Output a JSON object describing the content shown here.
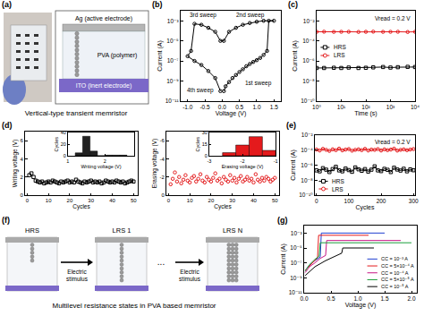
{
  "panel_a": {
    "label": "(a)",
    "electrodes": {
      "top": "Ag (active electrode)",
      "middle": "PVA (polymer)",
      "bottom": "ITO (inert electrode)"
    },
    "caption": "Vertical-type transient memristor"
  },
  "chart_data": [
    {
      "type": "line",
      "annotations": [
        "(b)",
        "1st sweep",
        "2nd sweep",
        "3rd sweep",
        "4th sweep"
      ],
      "xlabel": "Voltage (V)",
      "ylabel": "Current (A)",
      "x": [
        0.05,
        0.1,
        0.2,
        0.3,
        0.4,
        0.5,
        0.6,
        0.7,
        0.8,
        0.9,
        1.0,
        1.1,
        1.2,
        1.3,
        1.35,
        1.5,
        1.2,
        1.0,
        0.8,
        0.6,
        0.4,
        0.2,
        0.05,
        -0.05,
        -0.2,
        -0.4,
        -0.6,
        -0.8,
        -0.9,
        -1.0,
        -0.8,
        -0.6,
        -0.4,
        -0.2,
        -0.05
      ],
      "values": [
        1e-10,
        3e-10,
        8e-10,
        2e-09,
        4e-09,
        8e-09,
        1.5e-08,
        3e-08,
        5e-08,
        8e-08,
        1.2e-07,
        2e-07,
        4e-07,
        1e-06,
        0.001,
        0.001,
        0.001,
        0.0008,
        0.0006,
        0.0004,
        0.0002,
        8e-05,
        1e-05,
        1e-05,
        8e-05,
        0.0002,
        0.0004,
        0.0005,
        1e-06,
        3e-07,
        1e-07,
        4e-08,
        1e-08,
        2e-09,
        1e-10
      ],
      "color": "#000000",
      "marker": "circle-open",
      "line_style": "solid",
      "log": "y",
      "xlim": [
        -1.2,
        1.7
      ],
      "xticks": [
        {
          "value": -1,
          "label": "-1.0"
        },
        -0.5,
        {
          "value": 0,
          "label": "0.0"
        },
        0.5,
        {
          "value": 1,
          "label": "1.0"
        },
        1.5
      ],
      "ylim": [
        1e-11,
        0.01
      ],
      "yticks": [
        {
          "value": 0.001,
          "label": "10⁻³"
        },
        {
          "value": 1e-05,
          "label": "10⁻⁵"
        },
        {
          "value": 1e-07,
          "label": "10⁻⁷"
        },
        {
          "value": 1e-09,
          "label": "10⁻⁹"
        },
        {
          "value": 1e-11,
          "label": "10⁻¹¹"
        }
      ],
      "grid": false
    },
    {
      "type": "line",
      "annotations": [
        "(c)",
        "Vread = 0.2 V"
      ],
      "xlabel": "Time (s)",
      "ylabel": "Current (A)",
      "x": [
        1,
        2,
        5,
        10,
        20,
        50,
        100,
        200,
        500,
        1000,
        2000,
        5000,
        10000
      ],
      "series": [
        {
          "name": "HRS",
          "color": "#000000",
          "marker": "square-open",
          "values": [
            2e-07,
            2e-07,
            2.1e-07,
            2e-07,
            2.2e-07,
            2e-07,
            2.1e-07,
            2.3e-07,
            2.5e-07,
            2.2e-07,
            2.4e-07,
            2.6e-07,
            2.5e-07
          ]
        },
        {
          "name": "LRS",
          "color": "#e41a1c",
          "marker": "circle-open",
          "values": [
            0.0008,
            0.00082,
            0.00079,
            0.0008,
            0.00081,
            0.00078,
            0.0008,
            0.00083,
            0.00079,
            0.0008,
            0.00081,
            0.00077,
            0.0008
          ]
        }
      ],
      "log": true,
      "legend": "left",
      "line_style": "solid",
      "xlim": [
        1,
        10000
      ],
      "xticks": [
        {
          "value": 1,
          "label": "10⁰"
        },
        {
          "value": 10,
          "label": "10¹"
        },
        {
          "value": 100,
          "label": "10²"
        },
        {
          "value": 1000,
          "label": "10³"
        },
        {
          "value": 10000,
          "label": "10⁴"
        }
      ],
      "ylim": [
        1e-10,
        0.1
      ],
      "yticks": [
        {
          "value": 0.01,
          "label": "10⁻²"
        },
        {
          "value": 0.0001,
          "label": "10⁻⁴"
        },
        {
          "value": 1e-06,
          "label": "10⁻⁶"
        },
        {
          "value": 1e-08,
          "label": "10⁻⁸"
        },
        {
          "value": 1e-10,
          "label": "10⁻¹⁰"
        }
      ],
      "grid": false
    },
    {
      "type": "scatter",
      "annotations": [
        "(d)"
      ],
      "xlabel": "Cycles",
      "ylabel": "Writing voltage (V)",
      "x": [
        1,
        2,
        3,
        4,
        5,
        6,
        7,
        8,
        9,
        10,
        11,
        12,
        13,
        14,
        15,
        16,
        17,
        18,
        19,
        20,
        21,
        22,
        23,
        24,
        25,
        26,
        27,
        28,
        29,
        30,
        31,
        32,
        33,
        34,
        35,
        36,
        37,
        38,
        39,
        40,
        41,
        42,
        43,
        44,
        45,
        46,
        47,
        48,
        49,
        50
      ],
      "values": [
        2.2,
        2.4,
        2.0,
        1.6,
        1.5,
        1.4,
        1.5,
        1.3,
        1.4,
        1.5,
        1.4,
        1.6,
        1.5,
        1.4,
        1.3,
        1.5,
        1.4,
        1.5,
        1.6,
        1.4,
        1.5,
        1.4,
        1.7,
        1.5,
        1.4,
        1.3,
        1.5,
        1.4,
        1.5,
        1.6,
        1.4,
        1.5,
        1.4,
        1.5,
        1.3,
        1.4,
        1.6,
        1.5,
        1.4,
        1.5,
        1.4,
        1.6,
        1.5,
        1.4,
        1.5,
        1.3,
        1.4,
        1.5,
        1.6,
        1.5
      ],
      "color": "#000000",
      "marker": "square-open",
      "xlim": [
        -1,
        52
      ],
      "xticks": [
        0,
        10,
        20,
        30,
        40,
        50
      ],
      "ylim": [
        0,
        7
      ],
      "yticks": [
        0,
        2,
        4,
        6
      ],
      "grid": false,
      "inset": {
        "type": "histogram",
        "xlabel": "Writing voltage (V)",
        "ylabel": "Cycles",
        "bins": [
          1.2,
          1.4,
          1.6,
          1.8,
          2.0,
          2.2,
          2.4,
          2.6
        ],
        "values": [
          5,
          34,
          8,
          0,
          1,
          1,
          1
        ],
        "color": "#222222",
        "xlim": [
          1,
          2.8
        ],
        "xticks": [
          1,
          2
        ],
        "ylim": [
          0,
          40
        ],
        "yticks": [
          0,
          20,
          40
        ]
      }
    },
    {
      "type": "scatter",
      "xlabel": "Cycles",
      "ylabel": "Erasing voltage (V)",
      "x": [
        1,
        2,
        3,
        4,
        5,
        6,
        7,
        8,
        9,
        10,
        11,
        12,
        13,
        14,
        15,
        16,
        17,
        18,
        19,
        20,
        21,
        22,
        23,
        24,
        25,
        26,
        27,
        28,
        29,
        30,
        31,
        32,
        33,
        34,
        35,
        36,
        37,
        38,
        39,
        40,
        41,
        42,
        43,
        44,
        45,
        46,
        47,
        48,
        49,
        50
      ],
      "values": [
        -1.2,
        -1.8,
        -2.5,
        -1.5,
        -2.0,
        -1.3,
        -1.7,
        -2.2,
        -1.6,
        -1.4,
        -1.9,
        -2.1,
        -1.5,
        -1.8,
        -2.3,
        -1.6,
        -1.4,
        -2.0,
        -1.7,
        -1.5,
        -1.9,
        -2.4,
        -1.6,
        -1.8,
        -1.3,
        -2.0,
        -1.7,
        -1.5,
        -2.2,
        -1.6,
        -1.9,
        -1.4,
        -1.8,
        -2.1,
        -1.5,
        -1.7,
        -2.0,
        -1.6,
        -1.8,
        -1.4,
        -2.3,
        -1.7,
        -1.5,
        -1.9,
        -1.6,
        -2.0,
        -1.8,
        -1.5,
        -1.7,
        -1.9
      ],
      "color": "#e41a1c",
      "marker": "circle-open",
      "xlim": [
        -1,
        52
      ],
      "xticks": [
        0,
        10,
        20,
        30,
        40,
        50
      ],
      "ylim": [
        0,
        -7
      ],
      "yticks": [
        0,
        -2,
        -4,
        -6
      ],
      "grid": false,
      "inset": {
        "type": "histogram",
        "xlabel": "Erasing voltage (V)",
        "ylabel": "Cycles",
        "bins": [
          -2.6,
          -2.2,
          -1.8,
          -1.4,
          -1.0
        ],
        "values": [
          4,
          14,
          25,
          7
        ],
        "color": "#e41a1c",
        "xlim": [
          -3,
          -1
        ],
        "xticks": [
          -3,
          -2,
          -1
        ],
        "ylim": [
          0,
          30
        ],
        "yticks": [
          0,
          15,
          30
        ]
      }
    },
    {
      "type": "line",
      "annotations": [
        "(e)",
        "Vread = 0.2 V"
      ],
      "xlabel": "Cycles",
      "ylabel": "Current (A)",
      "x": [
        0,
        10,
        20,
        30,
        40,
        50,
        60,
        70,
        80,
        90,
        100,
        110,
        120,
        130,
        140,
        150,
        160,
        170,
        180,
        190,
        200,
        210,
        220,
        230,
        240,
        250,
        260,
        270,
        280,
        290,
        300
      ],
      "series": [
        {
          "name": "HRS",
          "color": "#000000",
          "marker": "square-open",
          "values": [
            2e-07,
            1.5e-07,
            4e-07,
            2.5e-07,
            1.2e-07,
            3e-07,
            6e-07,
            2e-07,
            1.5e-07,
            3.5e-07,
            2.2e-07,
            1.3e-07,
            5e-07,
            2.8e-07,
            1.8e-07,
            3e-07,
            1.4e-07,
            2.5e-07,
            7e-07,
            2e-07,
            1.6e-07,
            3.2e-07,
            2.4e-07,
            1.2e-07,
            4.5e-07,
            2.6e-07,
            1.9e-07,
            3.3e-07,
            1.5e-07,
            2.7e-07,
            2.1e-07
          ]
        },
        {
          "name": "LRS",
          "color": "#e41a1c",
          "marker": "circle-open",
          "values": [
            0.00012,
            9e-05,
            0.00015,
            0.00011,
            8e-05,
            0.00013,
            0.0001,
            0.00016,
            9.5e-05,
            0.00012,
            0.00014,
            8.5e-05,
            0.00011,
            0.00013,
            0.0001,
            0.00015,
            9e-05,
            0.00012,
            0.00011,
            0.00014,
            9e-05,
            0.00013,
            0.0001,
            0.00012,
            0.00016,
            8.8e-05,
            0.00011,
            0.00013,
            0.0001,
            0.00012,
            0.00014
          ]
        }
      ],
      "log": "y",
      "legend": "lower-left",
      "line_style": "solid",
      "xlim": [
        -5,
        305
      ],
      "xticks": [
        0,
        100,
        200,
        300
      ],
      "ylim": [
        1e-10,
        0.01
      ],
      "yticks": [
        {
          "value": 0.01,
          "label": "10⁻²"
        },
        {
          "value": 0.0001,
          "label": "10⁻⁴"
        },
        {
          "value": 1e-06,
          "label": "10⁻⁶"
        },
        {
          "value": 1e-08,
          "label": "10⁻⁸"
        },
        {
          "value": 1e-10,
          "label": "10⁻¹⁰"
        }
      ],
      "grid": false
    },
    {
      "type": "line",
      "annotations": [
        "(g)"
      ],
      "xlabel": "Voltage (V)",
      "ylabel": "Current (A)",
      "series": [
        {
          "name": "CC = 10⁻³ A",
          "color": "#1f3fd1",
          "x": [
            0.02,
            0.1,
            0.2,
            0.3,
            0.32,
            0.6,
            1.0,
            1.5
          ],
          "values": [
            1e-08,
            5e-08,
            2e-07,
            6e-07,
            0.001,
            0.001,
            0.001,
            0.001
          ]
        },
        {
          "name": "CC = 5×10⁻⁴ A",
          "color": "#e41a1c",
          "x": [
            0.02,
            0.1,
            0.2,
            0.25,
            0.27,
            0.8,
            1.2
          ],
          "values": [
            1e-08,
            4e-08,
            2e-07,
            5e-07,
            0.0005,
            0.0005,
            0.0005
          ]
        },
        {
          "name": "CC = 10⁻⁴ A",
          "color": "#c71585",
          "x": [
            0.02,
            0.1,
            0.2,
            0.3,
            0.4,
            0.42,
            1.0,
            1.8
          ],
          "values": [
            5e-09,
            3e-08,
            1e-07,
            4e-07,
            1e-06,
            0.0001,
            0.0001,
            0.0001
          ]
        },
        {
          "name": "CC = 5×10⁻⁵ A",
          "color": "#1a9e3a",
          "x": [
            0.02,
            0.1,
            0.2,
            0.28,
            0.3,
            0.9,
            2.0
          ],
          "values": [
            8e-09,
            6e-08,
            3e-07,
            8e-07,
            5e-05,
            5e-05,
            5e-05
          ]
        },
        {
          "name": "CC = 10⁻⁵ A",
          "color": "#000000",
          "x": [
            0.02,
            0.2,
            0.4,
            0.6,
            0.7,
            0.72,
            1.0,
            1.3
          ],
          "values": [
            2e-09,
            3e-08,
            2e-07,
            8e-07,
            2e-06,
            1e-05,
            1e-05,
            1e-05
          ]
        }
      ],
      "log": "y",
      "legend": "lower-right",
      "line_style": "solid",
      "xlim": [
        0,
        2.1
      ],
      "xticks": [
        {
          "value": 0,
          "label": "0.0"
        },
        0.5,
        {
          "value": 1,
          "label": "1.0"
        },
        1.5,
        {
          "value": 2,
          "label": "2.0"
        }
      ],
      "ylim": [
        1e-11,
        0.01
      ],
      "yticks": [
        {
          "value": 0.001,
          "label": "10⁻³"
        },
        {
          "value": 1e-05,
          "label": "10⁻⁵"
        },
        {
          "value": 1e-07,
          "label": "10⁻⁷"
        },
        {
          "value": 1e-09,
          "label": "10⁻⁹"
        },
        {
          "value": 1e-11,
          "label": "10⁻¹¹"
        }
      ],
      "grid": false
    }
  ],
  "panel_f": {
    "label": "(f)",
    "states": [
      "HRS",
      "LRS 1",
      "LRS N"
    ],
    "transitions": [
      "Electric stimulus",
      "Electric stimulus"
    ],
    "ellipsis": "...",
    "caption": "Multilevel resistance states in PVA based memristor"
  }
}
